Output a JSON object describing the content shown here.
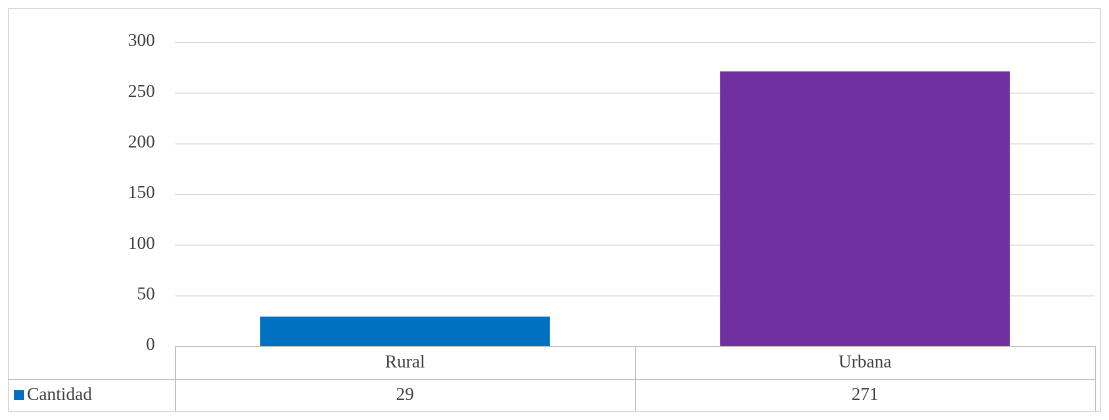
{
  "chart_data": {
    "type": "bar",
    "categories": [
      "Rural",
      "Urbana"
    ],
    "series": [
      {
        "name": "Cantidad",
        "colors": [
          "#0070c0",
          "#7030a0"
        ],
        "values": [
          29,
          271
        ]
      }
    ],
    "ylim": [
      0,
      300
    ],
    "yticks": [
      0,
      50,
      100,
      150,
      200,
      250,
      300
    ],
    "grid": true,
    "data_table": true
  }
}
